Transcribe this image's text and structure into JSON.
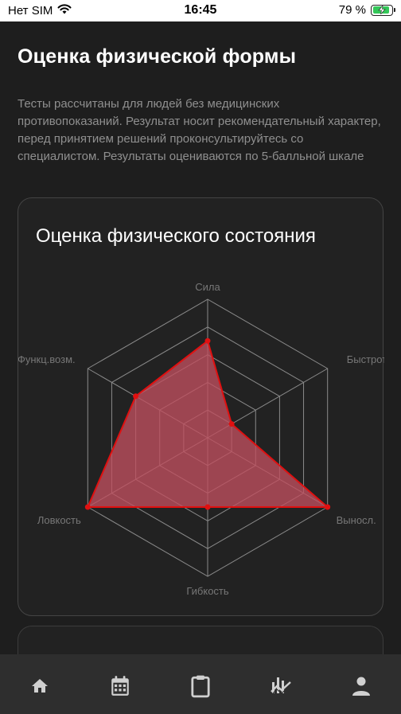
{
  "status_bar": {
    "carrier": "Нет SIM",
    "time": "16:45",
    "battery": "79 %"
  },
  "header": {
    "title": "Оценка физической формы",
    "description": "Тесты рассчитаны для людей без медицинских противопоказаний. Результат носит рекомендательный характер, перед принятием решений проконсультируйтесь со специалистом. Результаты оцениваются по 5-балльной шкале"
  },
  "card": {
    "title": "Оценка физического состояния"
  },
  "chart_data": {
    "type": "radar",
    "scale_max": 5,
    "grid_levels": 5,
    "categories": [
      "Сила",
      "Быстрота",
      "Выносл.",
      "Гибкость",
      "Ловкость",
      "Функц.возм."
    ],
    "values": [
      3.5,
      1.0,
      5.0,
      2.5,
      5.0,
      3.0
    ],
    "fill_color": "#c0505f",
    "line_color": "#e01010",
    "grid_color": "#8a8a8a"
  },
  "tab_bar": {
    "items": [
      {
        "icon": "home-icon"
      },
      {
        "icon": "calendar-icon"
      },
      {
        "icon": "clipboard-icon"
      },
      {
        "icon": "stats-icon"
      },
      {
        "icon": "profile-icon"
      }
    ]
  }
}
